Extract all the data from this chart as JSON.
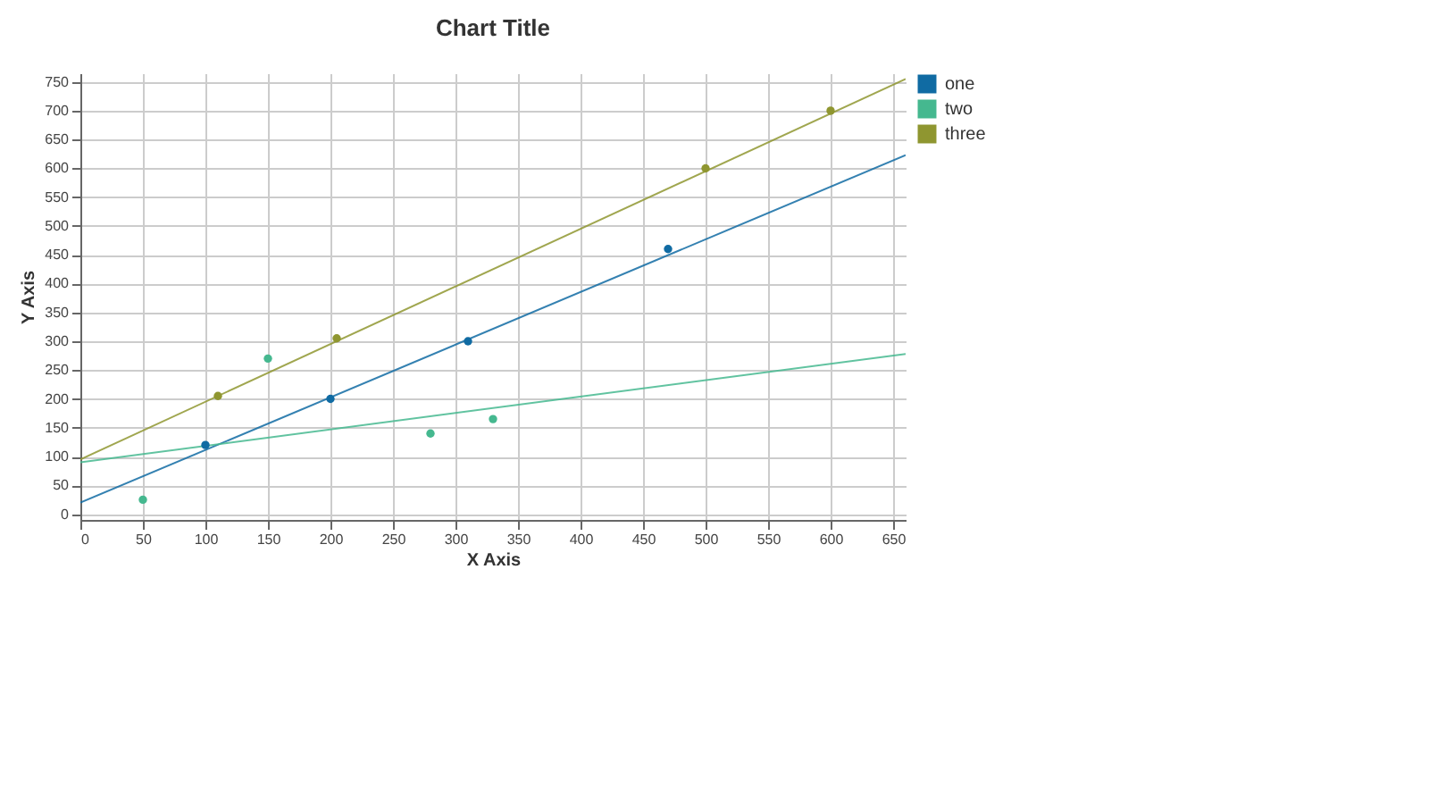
{
  "chart_data": {
    "type": "scatter",
    "title": "Chart Title",
    "xlabel": "X Axis",
    "ylabel": "Y Axis",
    "xlim": [
      0,
      660
    ],
    "ylim": [
      -10,
      765
    ],
    "xticks": [
      0,
      50,
      100,
      150,
      200,
      250,
      300,
      350,
      400,
      450,
      500,
      550,
      600,
      650
    ],
    "yticks": [
      0,
      50,
      100,
      150,
      200,
      250,
      300,
      350,
      400,
      450,
      500,
      550,
      600,
      650,
      700,
      750
    ],
    "grid": true,
    "legend": "right",
    "series": [
      {
        "name": "one",
        "color": "#106ba3",
        "marker": "circle",
        "x": [
          100,
          200,
          310,
          470
        ],
        "values": [
          120,
          200,
          300,
          460
        ]
      },
      {
        "name": "two",
        "color": "#45b88f",
        "marker": "circle",
        "x": [
          50,
          150,
          280,
          330
        ],
        "values": [
          25,
          270,
          140,
          165
        ]
      },
      {
        "name": "three",
        "color": "#8f9630",
        "marker": "circle",
        "x": [
          110,
          205,
          500,
          600
        ],
        "values": [
          205,
          305,
          600,
          700
        ]
      },
      {
        "color": "#106ba3",
        "type": "line",
        "x": [
          0,
          660
        ],
        "values": [
          20,
          623
        ]
      },
      {
        "color": "#45b88f",
        "type": "line",
        "x": [
          0,
          660
        ],
        "values": [
          90,
          278
        ]
      },
      {
        "color": "#8f9630",
        "type": "line",
        "x": [
          0,
          660
        ],
        "values": [
          95,
          755
        ]
      }
    ]
  }
}
